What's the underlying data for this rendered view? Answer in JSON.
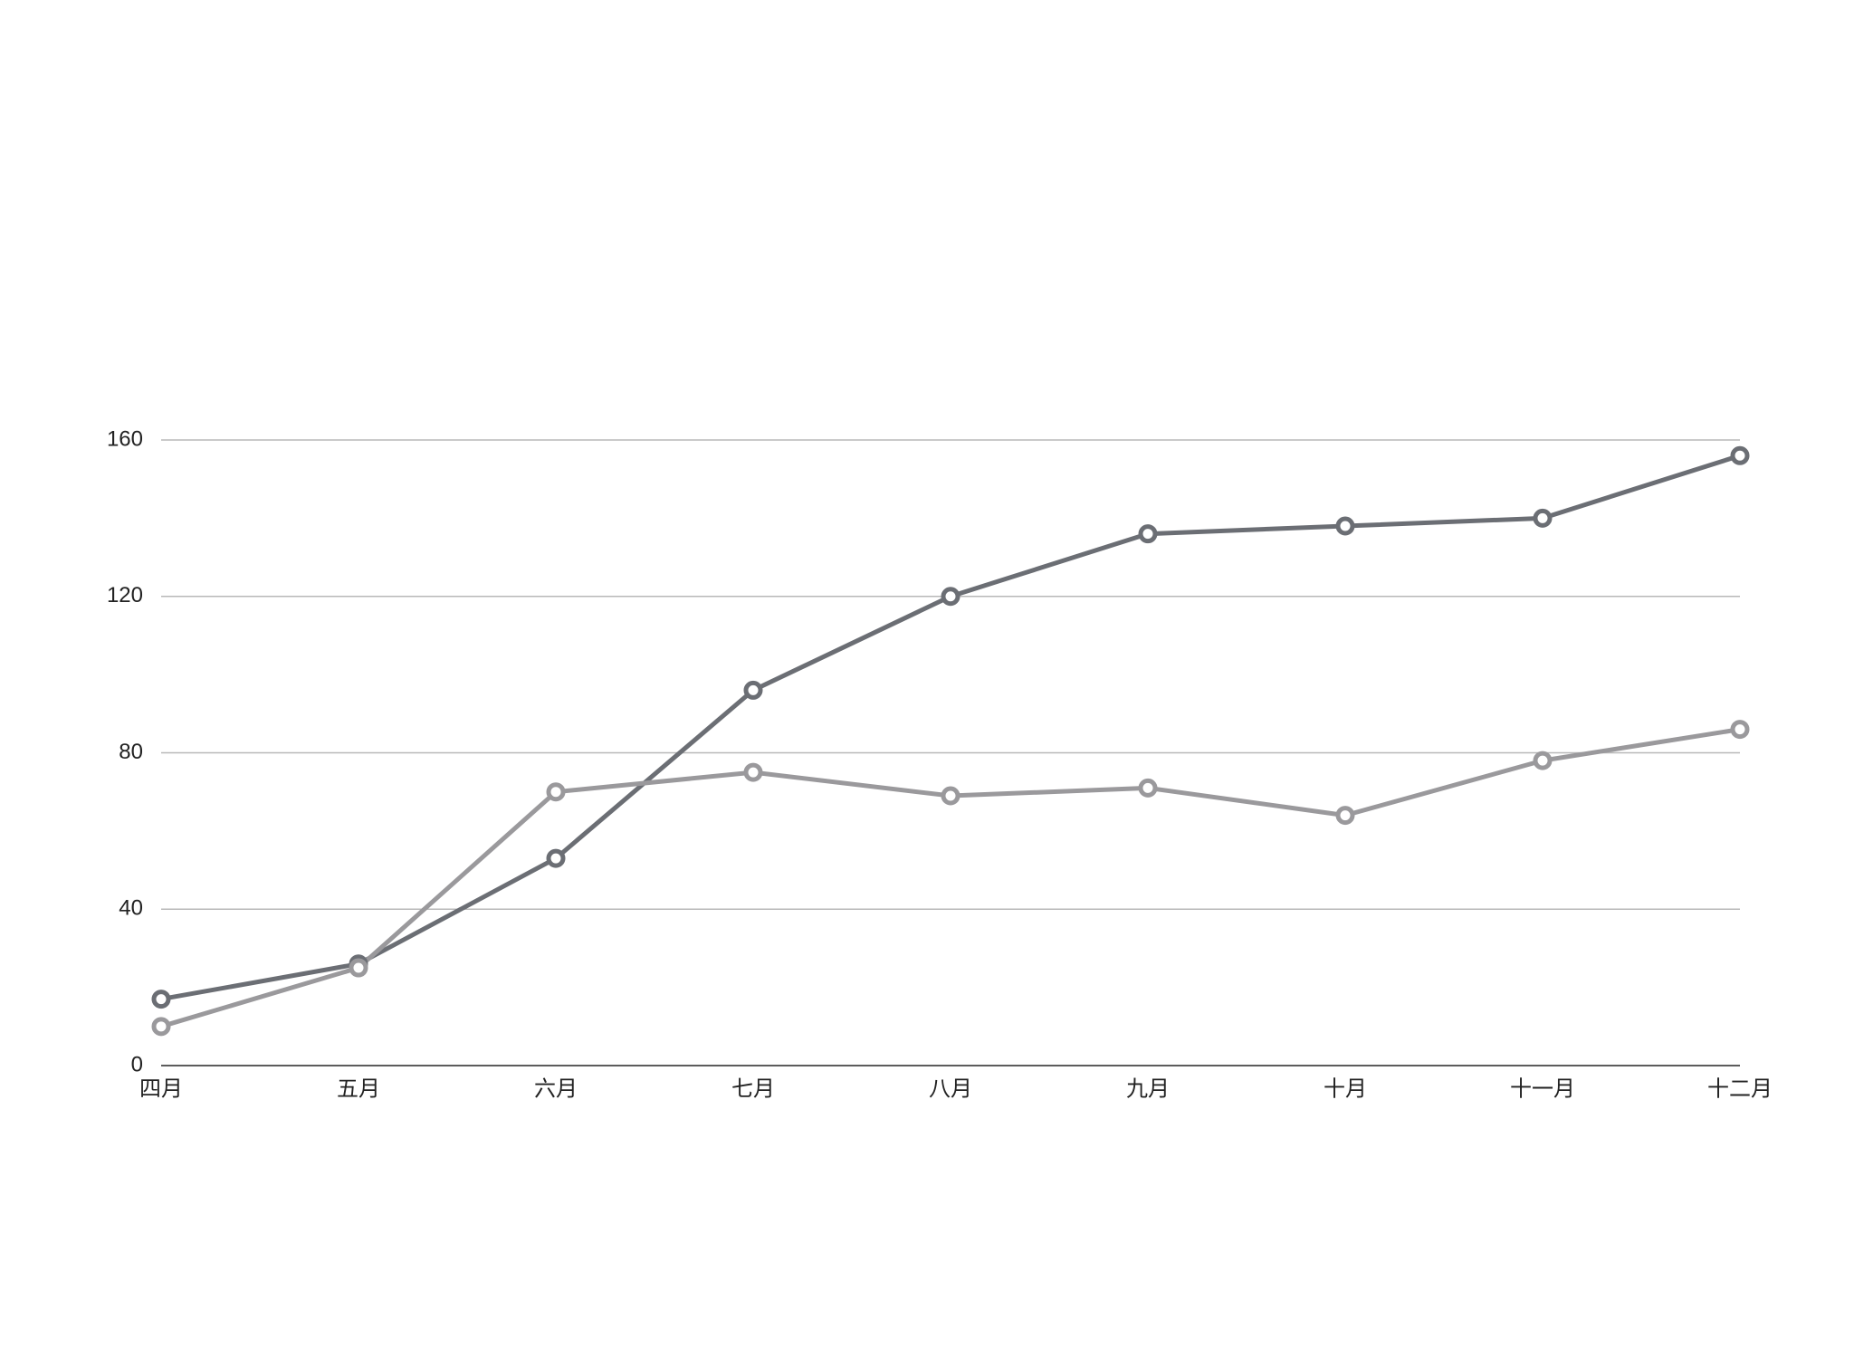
{
  "chart_data": {
    "type": "line",
    "categories": [
      "四月",
      "五月",
      "六月",
      "七月",
      "八月",
      "九月",
      "十月",
      "十一月",
      "十二月"
    ],
    "series": [
      {
        "color": "#6b6e74",
        "values": [
          17,
          26,
          53,
          96,
          120,
          136,
          138,
          140,
          156
        ]
      },
      {
        "color": "#9a999c",
        "values": [
          10,
          25,
          70,
          75,
          69,
          71,
          64,
          78,
          86
        ]
      }
    ],
    "ylim": [
      0,
      160
    ],
    "yticks": [
      0,
      40,
      80,
      120,
      160
    ],
    "grid": true
  }
}
